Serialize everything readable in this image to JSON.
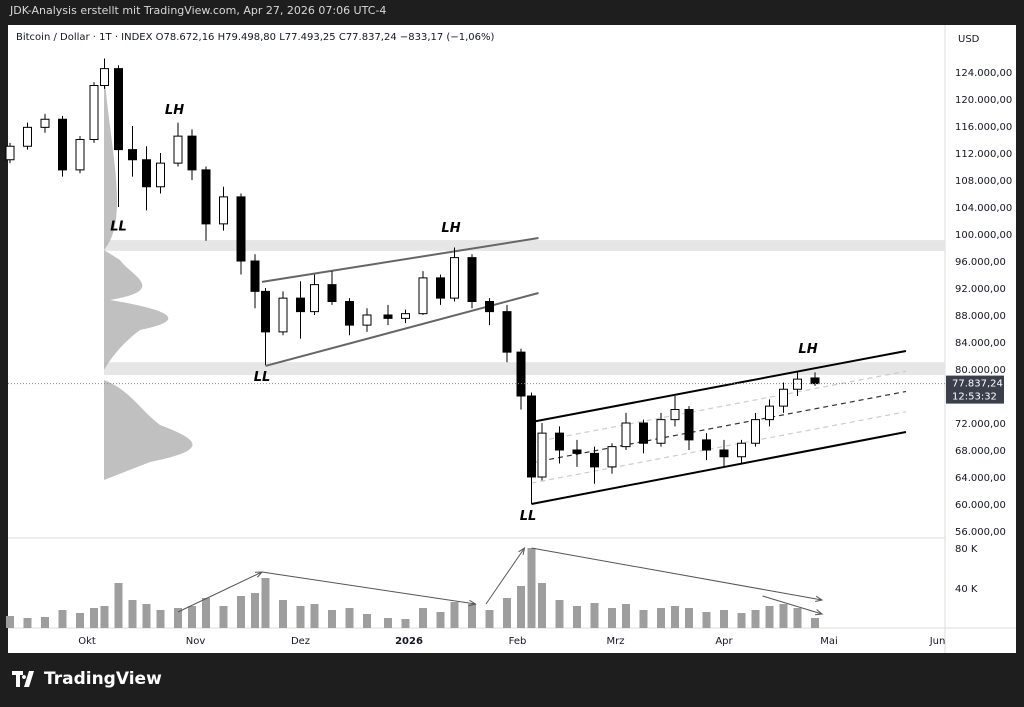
{
  "header": {
    "attribution": "JDK-Analysis erstellt mit TradingView.com, Apr 27, 2026 07:06 UTC-4",
    "legend": "Bitcoin / Dollar · 1T · INDEX  O78.672,16  H79.498,80  L77.493,25  C77.837,24  −833,17 (−1,06%)"
  },
  "footer": {
    "brand": "TradingView"
  },
  "chart_data": {
    "type": "candlestick",
    "currency": "USD",
    "price_ticks": [
      "124.000,00",
      "120.000,00",
      "116.000,00",
      "112.000,00",
      "108.000,00",
      "104.000,00",
      "100.000,00",
      "96.000,00",
      "92.000,00",
      "88.000,00",
      "84.000,00",
      "80.000,00",
      "72.000,00",
      "68.000,00",
      "64.000,00",
      "60.000,00",
      "56.000,00"
    ],
    "price_tick_values": [
      124000,
      120000,
      116000,
      112000,
      108000,
      104000,
      100000,
      96000,
      92000,
      88000,
      84000,
      80000,
      72000,
      68000,
      64000,
      60000,
      56000
    ],
    "volume_ticks": [
      "80 K",
      "40 K"
    ],
    "volume_tick_values": [
      80000,
      40000
    ],
    "time_ticks": [
      {
        "label": "Okt",
        "date": "2025-10-01"
      },
      {
        "label": "Nov",
        "date": "2025-11-01"
      },
      {
        "label": "Dez",
        "date": "2025-12-01"
      },
      {
        "label": "2026",
        "date": "2026-01-01",
        "bold": true
      },
      {
        "label": "Feb",
        "date": "2026-02-01"
      },
      {
        "label": "Mrz",
        "date": "2026-03-01"
      },
      {
        "label": "Apr",
        "date": "2026-04-01"
      },
      {
        "label": "Mai",
        "date": "2026-05-01"
      },
      {
        "label": "Jun",
        "date": "2026-06-01"
      }
    ],
    "last_price": {
      "value": 77837.24,
      "label": "77.837,24",
      "countdown": "12:53:32"
    },
    "colors": {
      "up": "#ffffff",
      "down": "#000000",
      "zone": "#e6e6e6",
      "last": "#3a3f4b"
    },
    "candles": [
      [
        "2025-09-09",
        111000,
        113500,
        110500,
        113000,
        12
      ],
      [
        "2025-09-14",
        113000,
        116500,
        112500,
        115800,
        10
      ],
      [
        "2025-09-19",
        115800,
        117800,
        115000,
        117000,
        11
      ],
      [
        "2025-09-24",
        117000,
        117500,
        108500,
        109500,
        18
      ],
      [
        "2025-09-29",
        109500,
        114500,
        109000,
        114000,
        15
      ],
      [
        "2025-10-03",
        114000,
        122500,
        113500,
        122000,
        20
      ],
      [
        "2025-10-06",
        122000,
        126000,
        121500,
        124500,
        22
      ],
      [
        "2025-10-10",
        124500,
        125000,
        104000,
        112500,
        45
      ],
      [
        "2025-10-14",
        112500,
        116000,
        108500,
        111000,
        28
      ],
      [
        "2025-10-18",
        111000,
        113000,
        103500,
        107000,
        24
      ],
      [
        "2025-10-22",
        107000,
        112000,
        106000,
        110500,
        18
      ],
      [
        "2025-10-27",
        110500,
        116500,
        110000,
        114500,
        20
      ],
      [
        "2025-10-31",
        114500,
        115500,
        108000,
        109500,
        22
      ],
      [
        "2025-11-04",
        109500,
        110000,
        99000,
        101500,
        30
      ],
      [
        "2025-11-09",
        101500,
        107000,
        100500,
        105500,
        22
      ],
      [
        "2025-11-14",
        105500,
        106000,
        94000,
        96000,
        32
      ],
      [
        "2025-11-18",
        96000,
        97000,
        89000,
        91500,
        35
      ],
      [
        "2025-11-21",
        91500,
        92000,
        80600,
        85500,
        50
      ],
      [
        "2025-11-26",
        85500,
        91500,
        85000,
        90500,
        28
      ],
      [
        "2025-12-01",
        90500,
        93000,
        84500,
        88500,
        22
      ],
      [
        "2025-12-05",
        88500,
        94000,
        88000,
        92500,
        24
      ],
      [
        "2025-12-10",
        92500,
        94500,
        89500,
        90000,
        18
      ],
      [
        "2025-12-15",
        90000,
        90500,
        85000,
        86500,
        20
      ],
      [
        "2025-12-20",
        86500,
        89000,
        85500,
        88000,
        14
      ],
      [
        "2025-12-26",
        88000,
        89500,
        86500,
        87500,
        10
      ],
      [
        "2025-12-31",
        87500,
        88800,
        86800,
        88200,
        9
      ],
      [
        "2026-01-05",
        88200,
        94500,
        88000,
        93500,
        20
      ],
      [
        "2026-01-10",
        93500,
        94000,
        89500,
        90500,
        16
      ],
      [
        "2026-01-14",
        90500,
        98000,
        90000,
        96500,
        26
      ],
      [
        "2026-01-19",
        96500,
        97000,
        89000,
        90000,
        24
      ],
      [
        "2026-01-24",
        90000,
        90500,
        86500,
        88500,
        18
      ],
      [
        "2026-01-29",
        88500,
        89500,
        81000,
        82500,
        30
      ],
      [
        "2026-02-02",
        82500,
        83000,
        74000,
        76000,
        42
      ],
      [
        "2026-02-05",
        76000,
        76500,
        60000,
        64000,
        80
      ],
      [
        "2026-02-08",
        64000,
        72000,
        63500,
        70500,
        45
      ],
      [
        "2026-02-13",
        70500,
        71500,
        66000,
        68000,
        28
      ],
      [
        "2026-02-18",
        68000,
        69500,
        65500,
        67500,
        22
      ],
      [
        "2026-02-23",
        67500,
        68500,
        63000,
        65500,
        25
      ],
      [
        "2026-02-28",
        65500,
        69000,
        64500,
        68500,
        20
      ],
      [
        "2026-03-04",
        68500,
        73500,
        68000,
        72000,
        24
      ],
      [
        "2026-03-09",
        72000,
        72500,
        67500,
        69000,
        18
      ],
      [
        "2026-03-14",
        69000,
        73500,
        68500,
        72500,
        20
      ],
      [
        "2026-03-18",
        72500,
        76000,
        71500,
        74000,
        22
      ],
      [
        "2026-03-22",
        74000,
        74500,
        68000,
        69500,
        20
      ],
      [
        "2026-03-27",
        69500,
        70500,
        66500,
        68000,
        16
      ],
      [
        "2026-04-01",
        68000,
        69500,
        65500,
        67000,
        18
      ],
      [
        "2026-04-06",
        67000,
        69500,
        66000,
        69000,
        15
      ],
      [
        "2026-04-10",
        69000,
        73500,
        68500,
        72500,
        18
      ],
      [
        "2026-04-14",
        72500,
        75500,
        71500,
        74500,
        22
      ],
      [
        "2026-04-18",
        74500,
        78000,
        73500,
        77000,
        24
      ],
      [
        "2026-04-22",
        77000,
        79500,
        76000,
        78500,
        20
      ],
      [
        "2026-04-27",
        78672.16,
        79498.8,
        77493.25,
        77837.24,
        10
      ]
    ],
    "candle_fields": [
      "date",
      "open",
      "high",
      "low",
      "close",
      "volume_k"
    ],
    "zones": [
      [
        97500,
        99100
      ],
      [
        79100,
        81000
      ]
    ],
    "trendlines": [
      {
        "from": [
          "2025-11-20",
          92900
        ],
        "to": [
          "2026-02-07",
          99400
        ],
        "style": "solid",
        "color": "#666"
      },
      {
        "from": [
          "2025-11-21",
          80450
        ],
        "to": [
          "2026-02-07",
          91260
        ],
        "style": "solid",
        "color": "#666"
      },
      {
        "from": [
          "2026-02-05",
          72150
        ],
        "to": [
          "2026-05-23",
          82670
        ],
        "style": "solid",
        "color": "#000"
      },
      {
        "from": [
          "2026-02-05",
          60000
        ],
        "to": [
          "2026-05-23",
          70670
        ],
        "style": "solid",
        "color": "#000"
      },
      {
        "from": [
          "2026-02-05",
          66100
        ],
        "to": [
          "2026-05-23",
          76670
        ],
        "style": "dashed",
        "color": "#333"
      },
      {
        "from": [
          "2026-02-05",
          69100
        ],
        "to": [
          "2026-05-23",
          79670
        ],
        "style": "dashed",
        "color": "#ccc"
      },
      {
        "from": [
          "2026-02-05",
          63100
        ],
        "to": [
          "2026-05-23",
          73670
        ],
        "style": "dashed",
        "color": "#ccc"
      }
    ],
    "labels": [
      {
        "text": "LH",
        "date": "2025-10-26",
        "price": 117800
      },
      {
        "text": "LL",
        "date": "2025-10-10",
        "price": 100500
      },
      {
        "text": "LL",
        "date": "2025-11-20",
        "price": 78200
      },
      {
        "text": "LH",
        "date": "2026-01-13",
        "price": 100300
      },
      {
        "text": "LL",
        "date": "2026-02-04",
        "price": 57600
      },
      {
        "text": "LH",
        "date": "2026-04-25",
        "price": 82400
      }
    ],
    "volume_arrows": [
      [
        [
          "2025-10-27",
          16
        ],
        [
          "2025-11-20",
          56
        ]
      ],
      [
        [
          "2025-11-20",
          56
        ],
        [
          "2026-01-20",
          24
        ]
      ],
      [
        [
          "2026-01-23",
          24
        ],
        [
          "2026-02-03",
          80
        ]
      ],
      [
        [
          "2026-02-05",
          80
        ],
        [
          "2026-04-29",
          28
        ]
      ],
      [
        [
          "2026-04-12",
          32
        ],
        [
          "2026-04-29",
          14
        ]
      ]
    ]
  }
}
